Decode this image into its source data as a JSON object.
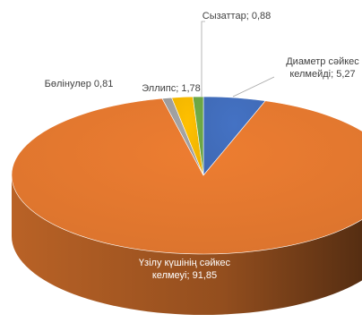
{
  "chart_data": {
    "type": "pie",
    "style": "3d",
    "title": "",
    "slices": [
      {
        "label": "Диаметр сәйкес келмейді",
        "value": 5.27,
        "color": "#4472c4",
        "label_lines": [
          "Диаметр сәйкес",
          "келмейді; 5,27"
        ]
      },
      {
        "label": "Үзілу күшінің сәйкес келмеуі",
        "value": 91.85,
        "color": "#ed7d31",
        "label_lines": [
          "Үзілу күшінің сәйкес",
          "келмеуі; 91,85"
        ]
      },
      {
        "label": "Бөлінулер",
        "value": 0.81,
        "color": "#a5a5a5",
        "label_lines": [
          "Бөлінулер 0,81"
        ]
      },
      {
        "label": "Эллипс",
        "value": 1.78,
        "color": "#ffc000",
        "label_lines": [
          "Эллипс; 1,78"
        ]
      },
      {
        "label": "Сызаттар",
        "value": 0.88,
        "color": "#70ad47",
        "label_lines": [
          "Сызаттар; 0,88"
        ]
      }
    ],
    "start_angle_deg": 0,
    "direction": "clockwise",
    "legend": "none",
    "data_labels": "outside_with_leader_lines"
  }
}
